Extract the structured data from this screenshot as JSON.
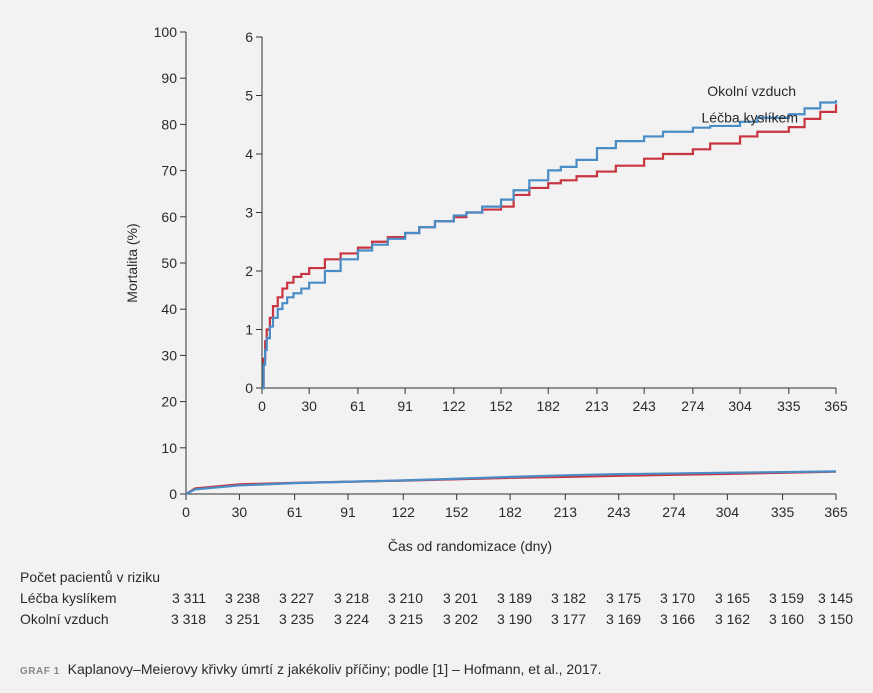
{
  "chart_data": [
    {
      "id": "main",
      "type": "line",
      "xlabel": "Čas od randomizace (dny)",
      "ylabel": "Mortalita (%)",
      "xlim": [
        0,
        365
      ],
      "ylim": [
        0,
        100
      ],
      "x_ticks": [
        0,
        30,
        61,
        91,
        122,
        152,
        182,
        213,
        243,
        274,
        304,
        335,
        365
      ],
      "y_ticks": [
        0,
        10,
        20,
        30,
        40,
        50,
        60,
        70,
        80,
        90,
        100
      ],
      "series": [
        {
          "color": "#c8343f",
          "x": [
            0,
            5,
            30,
            61,
            91,
            122,
            152,
            182,
            213,
            243,
            274,
            304,
            335,
            365
          ],
          "y": [
            0,
            1.2,
            2.1,
            2.4,
            2.65,
            2.9,
            3.2,
            3.5,
            3.7,
            3.95,
            4.15,
            4.35,
            4.6,
            4.85
          ]
        },
        {
          "color": "#4a8cc6",
          "x": [
            0,
            5,
            30,
            61,
            91,
            122,
            152,
            182,
            213,
            243,
            274,
            304,
            335,
            365
          ],
          "y": [
            0,
            1.0,
            1.85,
            2.35,
            2.65,
            2.95,
            3.3,
            3.7,
            4.05,
            4.3,
            4.45,
            4.6,
            4.75,
            4.9
          ]
        }
      ]
    },
    {
      "id": "inset",
      "type": "line",
      "xlim": [
        0,
        365
      ],
      "ylim": [
        0,
        6
      ],
      "x_ticks": [
        0,
        30,
        61,
        91,
        122,
        152,
        182,
        213,
        243,
        274,
        304,
        335,
        365
      ],
      "y_ticks": [
        0,
        1,
        2,
        3,
        4,
        5,
        6
      ],
      "series": [
        {
          "name": "Léčba kyslíkem",
          "color": "#c8343f",
          "x": [
            0,
            1,
            2,
            3,
            5,
            7,
            10,
            13,
            16,
            20,
            25,
            30,
            40,
            50,
            61,
            70,
            80,
            91,
            100,
            110,
            122,
            130,
            140,
            152,
            160,
            170,
            182,
            190,
            200,
            213,
            225,
            243,
            255,
            274,
            285,
            304,
            315,
            335,
            345,
            355,
            365
          ],
          "y": [
            0,
            0.5,
            0.8,
            1.0,
            1.2,
            1.4,
            1.55,
            1.7,
            1.8,
            1.9,
            1.95,
            2.05,
            2.2,
            2.3,
            2.4,
            2.5,
            2.58,
            2.65,
            2.75,
            2.85,
            2.92,
            3.0,
            3.05,
            3.1,
            3.3,
            3.42,
            3.5,
            3.55,
            3.62,
            3.7,
            3.8,
            3.92,
            4.0,
            4.08,
            4.18,
            4.3,
            4.38,
            4.46,
            4.6,
            4.72,
            4.85
          ]
        },
        {
          "name": "Okolní vzduch",
          "color": "#4a8cc6",
          "x": [
            0,
            1,
            2,
            3,
            5,
            7,
            10,
            13,
            16,
            20,
            25,
            30,
            40,
            50,
            61,
            70,
            80,
            91,
            100,
            110,
            122,
            130,
            140,
            152,
            160,
            170,
            182,
            190,
            200,
            213,
            225,
            243,
            255,
            274,
            285,
            304,
            315,
            335,
            345,
            355,
            365
          ],
          "y": [
            0,
            0.4,
            0.65,
            0.85,
            1.05,
            1.2,
            1.35,
            1.45,
            1.55,
            1.62,
            1.7,
            1.8,
            2.0,
            2.2,
            2.35,
            2.45,
            2.55,
            2.65,
            2.75,
            2.85,
            2.95,
            3.0,
            3.1,
            3.22,
            3.38,
            3.55,
            3.72,
            3.78,
            3.9,
            4.1,
            4.22,
            4.3,
            4.38,
            4.45,
            4.48,
            4.55,
            4.62,
            4.68,
            4.78,
            4.88,
            4.92
          ]
        }
      ]
    }
  ],
  "risk_table": {
    "title": "Počet pacientů v riziku",
    "rows": [
      {
        "label": "Léčba kyslíkem",
        "values": [
          "3 311",
          "3 238",
          "3 227",
          "3 218",
          "3 210",
          "3 201",
          "3 189",
          "3 182",
          "3 175",
          "3 170",
          "3 165",
          "3 159",
          "3 145"
        ]
      },
      {
        "label": "Okolní vzduch",
        "values": [
          "3 318",
          "3 251",
          "3 235",
          "3 224",
          "3 215",
          "3 202",
          "3 190",
          "3 177",
          "3 169",
          "3 166",
          "3 162",
          "3 160",
          "3 150"
        ]
      }
    ]
  },
  "caption": {
    "tag": "GRAF 1",
    "text": "Kaplanovy–Meierovy křivky úmrtí z jakékoliv příčiny; podle [1] – Hofmann, et al., 2017."
  }
}
